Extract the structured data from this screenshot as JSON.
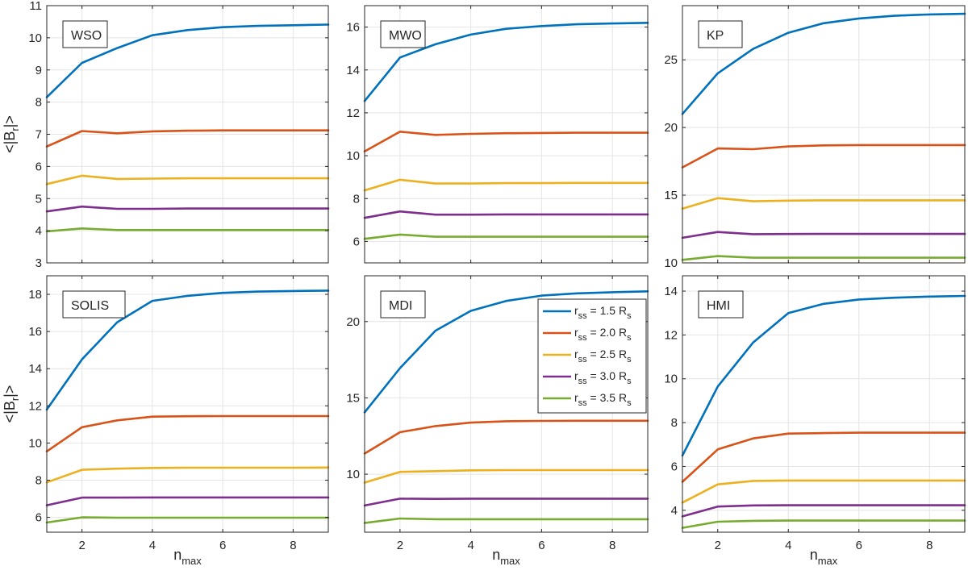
{
  "figure": {
    "xlabel_main": "n",
    "xlabel_sub": "max",
    "ylabel_prefix": "<|B",
    "ylabel_sub": "r",
    "ylabel_suffix": "|>"
  },
  "legend": {
    "panel_index": 4,
    "entries": [
      {
        "prefix": "r",
        "sub": "ss",
        "text": " = 1.5 R",
        "unit_sub": "s",
        "color": "#0072BD"
      },
      {
        "prefix": "r",
        "sub": "ss",
        "text": " = 2.0 R",
        "unit_sub": "s",
        "color": "#D95319"
      },
      {
        "prefix": "r",
        "sub": "ss",
        "text": " = 2.5 R",
        "unit_sub": "s",
        "color": "#EDB120"
      },
      {
        "prefix": "r",
        "sub": "ss",
        "text": " = 3.0 R",
        "unit_sub": "s",
        "color": "#7E2F8E"
      },
      {
        "prefix": "r",
        "sub": "ss",
        "text": " = 3.5 R",
        "unit_sub": "s",
        "color": "#77AC30"
      }
    ]
  },
  "chart_data": [
    {
      "type": "line",
      "title": "WSO",
      "x": [
        1,
        2,
        3,
        4,
        5,
        6,
        7,
        8,
        9
      ],
      "xlim": [
        1,
        9
      ],
      "xticks": [
        2,
        4,
        6,
        8
      ],
      "ylim": [
        3,
        11
      ],
      "yticks": [
        3,
        4,
        5,
        6,
        7,
        8,
        9,
        10,
        11
      ],
      "show_xticklabels": false,
      "show_xlabel": false,
      "show_ylabel": true,
      "series": [
        {
          "name": "rss = 1.5 Rs",
          "values": [
            8.15,
            9.22,
            9.68,
            10.08,
            10.24,
            10.33,
            10.37,
            10.39,
            10.41
          ]
        },
        {
          "name": "rss = 2.0 Rs",
          "values": [
            6.62,
            7.1,
            7.03,
            7.09,
            7.11,
            7.12,
            7.12,
            7.12,
            7.12
          ]
        },
        {
          "name": "rss = 2.5 Rs",
          "values": [
            5.45,
            5.71,
            5.61,
            5.62,
            5.63,
            5.63,
            5.63,
            5.63,
            5.63
          ]
        },
        {
          "name": "rss = 3.0 Rs",
          "values": [
            4.6,
            4.75,
            4.68,
            4.68,
            4.69,
            4.69,
            4.69,
            4.69,
            4.69
          ]
        },
        {
          "name": "rss = 3.5 Rs",
          "values": [
            3.98,
            4.07,
            4.02,
            4.02,
            4.02,
            4.02,
            4.02,
            4.02,
            4.02
          ]
        }
      ]
    },
    {
      "type": "line",
      "title": "MWO",
      "x": [
        1,
        2,
        3,
        4,
        5,
        6,
        7,
        8,
        9
      ],
      "xlim": [
        1,
        9
      ],
      "xticks": [
        2,
        4,
        6,
        8
      ],
      "ylim": [
        5,
        17
      ],
      "yticks": [
        6,
        8,
        10,
        12,
        14,
        16
      ],
      "show_xticklabels": false,
      "show_xlabel": false,
      "show_ylabel": false,
      "series": [
        {
          "name": "rss = 1.5 Rs",
          "values": [
            12.55,
            14.58,
            15.2,
            15.65,
            15.92,
            16.05,
            16.13,
            16.17,
            16.2
          ]
        },
        {
          "name": "rss = 2.0 Rs",
          "values": [
            10.2,
            11.12,
            10.97,
            11.02,
            11.05,
            11.06,
            11.07,
            11.07,
            11.07
          ]
        },
        {
          "name": "rss = 2.5 Rs",
          "values": [
            8.38,
            8.88,
            8.7,
            8.7,
            8.72,
            8.72,
            8.73,
            8.73,
            8.73
          ]
        },
        {
          "name": "rss = 3.0 Rs",
          "values": [
            7.1,
            7.4,
            7.25,
            7.25,
            7.26,
            7.26,
            7.26,
            7.26,
            7.26
          ]
        },
        {
          "name": "rss = 3.5 Rs",
          "values": [
            6.12,
            6.32,
            6.22,
            6.22,
            6.22,
            6.22,
            6.22,
            6.22,
            6.22
          ]
        }
      ]
    },
    {
      "type": "line",
      "title": "KP",
      "x": [
        1,
        2,
        3,
        4,
        5,
        6,
        7,
        8,
        9
      ],
      "xlim": [
        1,
        9
      ],
      "xticks": [
        2,
        4,
        6,
        8
      ],
      "ylim": [
        10,
        29
      ],
      "yticks": [
        10,
        15,
        20,
        25
      ],
      "show_xticklabels": false,
      "show_xlabel": false,
      "show_ylabel": false,
      "series": [
        {
          "name": "rss = 1.5 Rs",
          "values": [
            21.0,
            24.0,
            25.8,
            27.0,
            27.7,
            28.05,
            28.25,
            28.35,
            28.4
          ]
        },
        {
          "name": "rss = 2.0 Rs",
          "values": [
            17.05,
            18.45,
            18.4,
            18.6,
            18.68,
            18.7,
            18.7,
            18.7,
            18.7
          ]
        },
        {
          "name": "rss = 2.5 Rs",
          "values": [
            14.0,
            14.78,
            14.55,
            14.6,
            14.62,
            14.62,
            14.62,
            14.62,
            14.62
          ]
        },
        {
          "name": "rss = 3.0 Rs",
          "values": [
            11.85,
            12.28,
            12.12,
            12.13,
            12.14,
            12.14,
            12.14,
            12.14,
            12.14
          ]
        },
        {
          "name": "rss = 3.5 Rs",
          "values": [
            10.22,
            10.5,
            10.38,
            10.38,
            10.38,
            10.38,
            10.38,
            10.38,
            10.38
          ]
        }
      ]
    },
    {
      "type": "line",
      "title": "SOLIS",
      "x": [
        1,
        2,
        3,
        4,
        5,
        6,
        7,
        8,
        9
      ],
      "xlim": [
        1,
        9
      ],
      "xticks": [
        2,
        4,
        6,
        8
      ],
      "ylim": [
        5.2,
        19
      ],
      "yticks": [
        6,
        8,
        10,
        12,
        14,
        16,
        18
      ],
      "show_xticklabels": true,
      "show_xlabel": true,
      "show_ylabel": true,
      "series": [
        {
          "name": "rss = 1.5 Rs",
          "values": [
            11.8,
            14.5,
            16.5,
            17.65,
            17.92,
            18.08,
            18.15,
            18.18,
            18.2
          ]
        },
        {
          "name": "rss = 2.0 Rs",
          "values": [
            9.55,
            10.85,
            11.22,
            11.42,
            11.44,
            11.45,
            11.45,
            11.45,
            11.45
          ]
        },
        {
          "name": "rss = 2.5 Rs",
          "values": [
            7.88,
            8.56,
            8.62,
            8.66,
            8.67,
            8.67,
            8.67,
            8.67,
            8.68
          ]
        },
        {
          "name": "rss = 3.0 Rs",
          "values": [
            6.65,
            7.06,
            7.06,
            7.07,
            7.07,
            7.07,
            7.07,
            7.07,
            7.07
          ]
        },
        {
          "name": "rss = 3.5 Rs",
          "values": [
            5.72,
            6.0,
            5.98,
            5.98,
            5.98,
            5.98,
            5.98,
            5.98,
            5.98
          ]
        }
      ]
    },
    {
      "type": "line",
      "title": "MDI",
      "x": [
        1,
        2,
        3,
        4,
        5,
        6,
        7,
        8,
        9
      ],
      "xlim": [
        1,
        9
      ],
      "xticks": [
        2,
        4,
        6,
        8
      ],
      "ylim": [
        6.2,
        23
      ],
      "yticks": [
        10,
        15,
        20
      ],
      "show_xticklabels": true,
      "show_xlabel": true,
      "show_ylabel": false,
      "series": [
        {
          "name": "rss = 1.5 Rs",
          "values": [
            14.05,
            16.95,
            19.4,
            20.7,
            21.35,
            21.7,
            21.85,
            21.92,
            21.98
          ]
        },
        {
          "name": "rss = 2.0 Rs",
          "values": [
            11.35,
            12.75,
            13.15,
            13.38,
            13.47,
            13.49,
            13.5,
            13.5,
            13.5
          ]
        },
        {
          "name": "rss = 2.5 Rs",
          "values": [
            9.45,
            10.15,
            10.2,
            10.25,
            10.27,
            10.27,
            10.27,
            10.27,
            10.27
          ]
        },
        {
          "name": "rss = 3.0 Rs",
          "values": [
            7.95,
            8.4,
            8.38,
            8.4,
            8.4,
            8.4,
            8.4,
            8.4,
            8.4
          ]
        },
        {
          "name": "rss = 3.5 Rs",
          "values": [
            6.8,
            7.1,
            7.05,
            7.05,
            7.05,
            7.05,
            7.05,
            7.05,
            7.05
          ]
        }
      ]
    },
    {
      "type": "line",
      "title": "HMI",
      "x": [
        1,
        2,
        3,
        4,
        5,
        6,
        7,
        8,
        9
      ],
      "xlim": [
        1,
        9
      ],
      "xticks": [
        2,
        4,
        6,
        8
      ],
      "ylim": [
        3,
        14.7
      ],
      "yticks": [
        4,
        6,
        8,
        10,
        12,
        14
      ],
      "show_xticklabels": true,
      "show_xlabel": true,
      "show_ylabel": false,
      "series": [
        {
          "name": "rss = 1.5 Rs",
          "values": [
            6.5,
            9.65,
            11.65,
            13.0,
            13.42,
            13.62,
            13.7,
            13.75,
            13.78
          ]
        },
        {
          "name": "rss = 2.0 Rs",
          "values": [
            5.3,
            6.78,
            7.28,
            7.5,
            7.52,
            7.54,
            7.54,
            7.54,
            7.54
          ]
        },
        {
          "name": "rss = 2.5 Rs",
          "values": [
            4.35,
            5.18,
            5.34,
            5.36,
            5.36,
            5.36,
            5.36,
            5.36,
            5.36
          ]
        },
        {
          "name": "rss = 3.0 Rs",
          "values": [
            3.72,
            4.17,
            4.22,
            4.23,
            4.23,
            4.23,
            4.23,
            4.23,
            4.23
          ]
        },
        {
          "name": "rss = 3.5 Rs",
          "values": [
            3.2,
            3.48,
            3.52,
            3.53,
            3.53,
            3.53,
            3.53,
            3.53,
            3.53
          ]
        }
      ]
    }
  ]
}
